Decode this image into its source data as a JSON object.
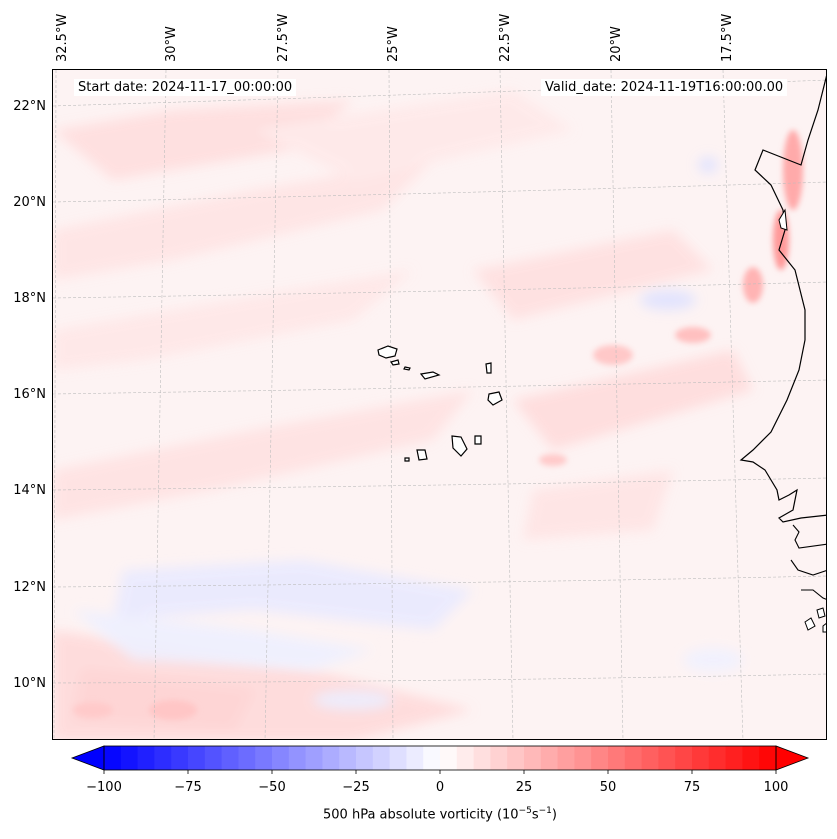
{
  "header": {
    "start_date": "Start date: 2024-11-17_00:00:00",
    "valid_date": "Valid_date: 2024-11-19T16:00:00.00"
  },
  "map": {
    "longitude_labels": [
      "32.5°W",
      "30°W",
      "27.5°W",
      "25°W",
      "22.5°W",
      "20°W",
      "17.5°W"
    ],
    "latitude_labels": [
      "22°N",
      "20°N",
      "18°N",
      "16°N",
      "14°N",
      "12°N",
      "10°N"
    ],
    "field": "500 hPa absolute vorticity",
    "gridlines": true,
    "features": [
      "Cape Verde islands",
      "West African coastline"
    ]
  },
  "colorbar": {
    "ticks": [
      "−100",
      "−75",
      "−50",
      "−25",
      "0",
      "25",
      "50",
      "75",
      "100"
    ],
    "label_text": "500 hPa absolute vorticity (10",
    "label_exp1": "−5",
    "label_mid": "s",
    "label_exp2": "−1",
    "label_close": ")",
    "range": [
      -100,
      100
    ],
    "extend": "both",
    "colors": {
      "low": "#0000ff",
      "mid": "#ffffff",
      "high": "#ff0000"
    }
  }
}
